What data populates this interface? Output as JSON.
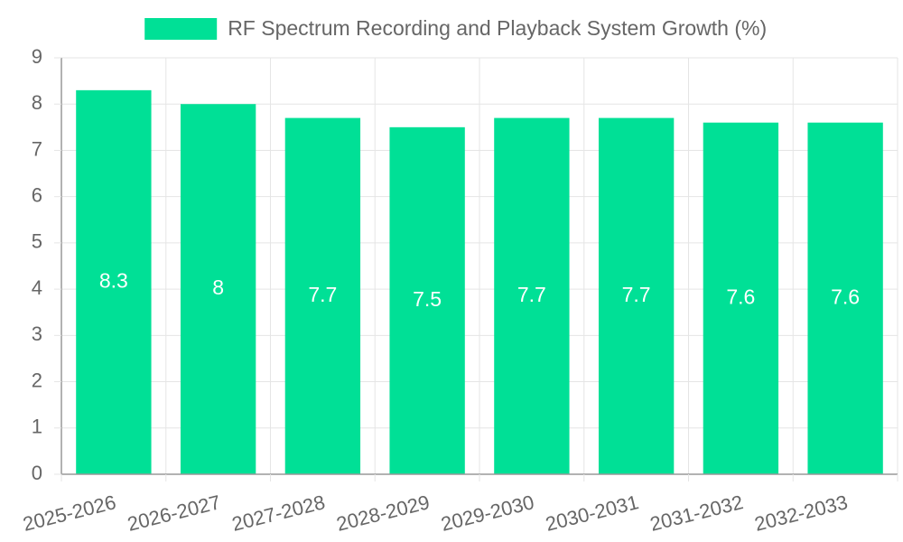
{
  "chart_data": {
    "type": "bar",
    "title": "",
    "xlabel": "",
    "ylabel": "",
    "categories": [
      "2025-2026",
      "2026-2027",
      "2027-2028",
      "2028-2029",
      "2029-2030",
      "2030-2031",
      "2031-2032",
      "2032-2033"
    ],
    "series": [
      {
        "name": "RF Spectrum Recording and Playback System Growth (%)",
        "values": [
          8.3,
          8,
          7.7,
          7.5,
          7.7,
          7.7,
          7.6,
          7.6
        ],
        "color": "#00e096"
      }
    ],
    "ylim": [
      0,
      9
    ],
    "yticks": [
      0,
      1,
      2,
      3,
      4,
      5,
      6,
      7,
      8,
      9
    ],
    "grid": true,
    "legend_position": "top",
    "data_labels": [
      "8.3",
      "8",
      "7.7",
      "7.5",
      "7.7",
      "7.7",
      "7.6",
      "7.6"
    ]
  },
  "colors": {
    "bar": "#00e096",
    "grid": "#e5e5e5",
    "axis": "#999999",
    "text": "#666666",
    "data_label": "#ffffff"
  }
}
